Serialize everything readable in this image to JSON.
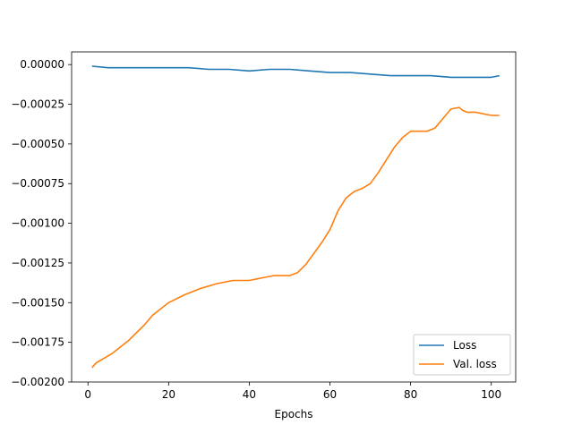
{
  "chart_data": {
    "type": "line",
    "title": "",
    "xlabel": "Epochs",
    "ylabel": "",
    "xlim": [
      -4.05,
      106.05
    ],
    "ylim": [
      -0.002,
      8e-05
    ],
    "x_ticks": [
      0,
      20,
      40,
      60,
      80,
      100
    ],
    "x_tick_labels": [
      "0",
      "20",
      "40",
      "60",
      "80",
      "100"
    ],
    "y_ticks": [
      0.0,
      -0.00025,
      -0.0005,
      -0.00075,
      -0.001,
      -0.00125,
      -0.0015,
      -0.00175,
      -0.002
    ],
    "y_tick_labels": [
      "0.00000",
      "−0.00025",
      "−0.00050",
      "−0.00075",
      "−0.00100",
      "−0.00125",
      "−0.00150",
      "−0.00175",
      "−0.00200"
    ],
    "grid": false,
    "legend_position": "lower-right",
    "series": [
      {
        "name": "Loss",
        "color": "#1f77b4",
        "x": [
          1,
          5,
          10,
          15,
          20,
          25,
          30,
          35,
          40,
          45,
          50,
          55,
          60,
          65,
          70,
          75,
          80,
          85,
          90,
          95,
          100,
          102
        ],
        "y": [
          -1e-05,
          -2e-05,
          -2e-05,
          -2e-05,
          -2e-05,
          -2e-05,
          -3e-05,
          -3e-05,
          -4e-05,
          -3e-05,
          -3e-05,
          -4e-05,
          -5e-05,
          -5e-05,
          -6e-05,
          -7e-05,
          -7e-05,
          -7e-05,
          -8e-05,
          -8e-05,
          -8e-05,
          -7e-05
        ]
      },
      {
        "name": "Val. loss",
        "color": "#ff7f0e",
        "x": [
          1,
          2,
          4,
          6,
          8,
          10,
          12,
          14,
          16,
          18,
          20,
          24,
          28,
          32,
          36,
          38,
          40,
          42,
          44,
          46,
          48,
          50,
          52,
          54,
          56,
          58,
          60,
          62,
          64,
          66,
          68,
          70,
          72,
          74,
          76,
          78,
          80,
          82,
          84,
          86,
          88,
          90,
          92,
          93,
          94,
          96,
          98,
          100,
          102
        ],
        "y": [
          -0.00191,
          -0.00188,
          -0.00185,
          -0.00182,
          -0.00178,
          -0.00174,
          -0.00169,
          -0.00164,
          -0.00158,
          -0.00154,
          -0.0015,
          -0.00145,
          -0.00141,
          -0.00138,
          -0.00136,
          -0.00136,
          -0.00136,
          -0.00135,
          -0.00134,
          -0.00133,
          -0.00133,
          -0.00133,
          -0.00131,
          -0.00126,
          -0.00119,
          -0.00112,
          -0.00104,
          -0.00092,
          -0.00084,
          -0.0008,
          -0.00078,
          -0.00075,
          -0.00068,
          -0.0006,
          -0.00052,
          -0.00046,
          -0.00042,
          -0.00042,
          -0.00042,
          -0.0004,
          -0.00034,
          -0.00028,
          -0.00027,
          -0.00029,
          -0.0003,
          -0.0003,
          -0.00031,
          -0.00032,
          -0.00032
        ]
      }
    ]
  }
}
